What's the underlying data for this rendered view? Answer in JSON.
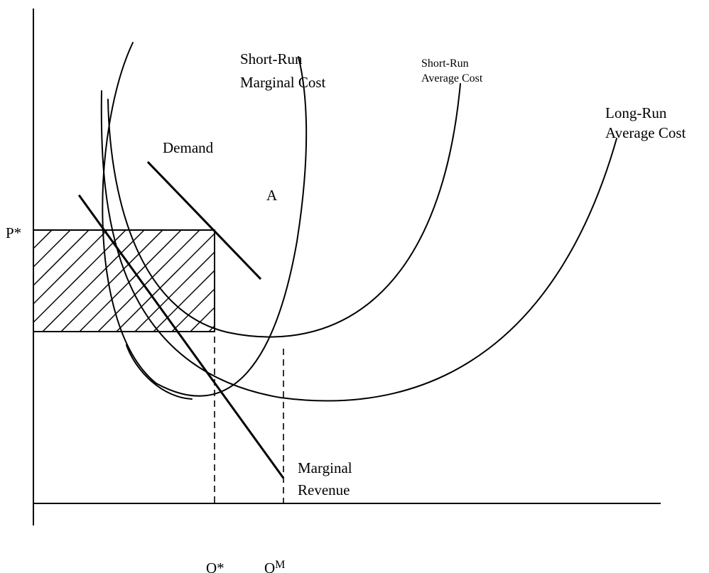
{
  "labels": {
    "srmc_line1": "Short-Run",
    "srmc_line2": "Marginal Cost",
    "srac_line1": "Short-Run",
    "srac_line2": "Average Cost",
    "lrac_line1": "Long-Run",
    "lrac_line2": "Average Cost",
    "demand": "Demand",
    "point_a": "A",
    "price": "P*",
    "mr_line1": "Marginal",
    "mr_line2": "Revenue",
    "q_star": "Q*",
    "q_m_base": "Q",
    "q_m_sup": "M"
  }
}
